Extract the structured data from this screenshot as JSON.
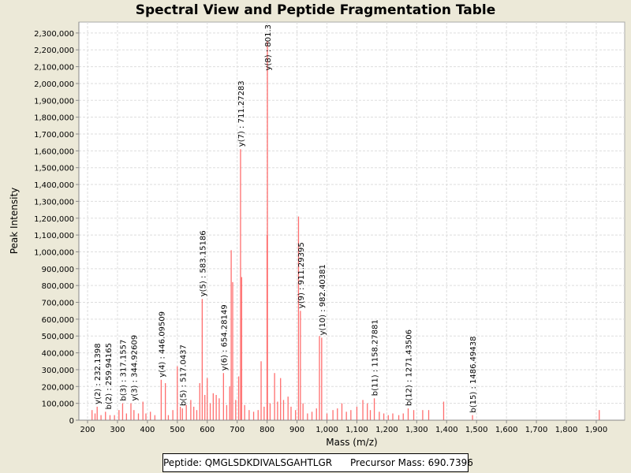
{
  "title": "Spectral View and Peptide Fragmentation Table",
  "footer": {
    "peptide_label": "Peptide: QMGLSDKDIVALSGAHTLGR",
    "precursor_label": "Precursor Mass: 690.7396"
  },
  "chart_data": {
    "type": "bar",
    "title": "Spectral View and Peptide Fragmentation Table",
    "xlabel": "Mass (m/z)",
    "ylabel": "Peak Intensity",
    "xlim": [
      171,
      1995
    ],
    "ylim": [
      0,
      2365000
    ],
    "xticks": [
      200,
      300,
      400,
      500,
      600,
      700,
      800,
      900,
      1000,
      1100,
      1200,
      1300,
      1400,
      1500,
      1600,
      1700,
      1800,
      1900
    ],
    "yticks": [
      0,
      100000,
      200000,
      300000,
      400000,
      500000,
      600000,
      700000,
      800000,
      900000,
      1000000,
      1100000,
      1200000,
      1300000,
      1400000,
      1500000,
      1600000,
      1700000,
      1800000,
      1900000,
      2000000,
      2100000,
      2200000,
      2300000
    ],
    "grid": true,
    "color": "#ff5555",
    "peaks": [
      [
        215,
        60000
      ],
      [
        225,
        40000
      ],
      [
        232.14,
        80000
      ],
      [
        245,
        30000
      ],
      [
        259.94,
        50000
      ],
      [
        275,
        30000
      ],
      [
        290,
        30000
      ],
      [
        305,
        60000
      ],
      [
        317.16,
        100000
      ],
      [
        330,
        40000
      ],
      [
        344.93,
        100000
      ],
      [
        355,
        60000
      ],
      [
        370,
        40000
      ],
      [
        385,
        110000
      ],
      [
        395,
        40000
      ],
      [
        410,
        50000
      ],
      [
        425,
        30000
      ],
      [
        446.1,
        240000
      ],
      [
        460,
        220000
      ],
      [
        470,
        30000
      ],
      [
        485,
        60000
      ],
      [
        500,
        320000
      ],
      [
        510,
        80000
      ],
      [
        517.04,
        70000
      ],
      [
        530,
        90000
      ],
      [
        545,
        120000
      ],
      [
        555,
        80000
      ],
      [
        565,
        60000
      ],
      [
        575,
        220000
      ],
      [
        583.15,
        720000
      ],
      [
        592,
        150000
      ],
      [
        600,
        250000
      ],
      [
        610,
        100000
      ],
      [
        620,
        160000
      ],
      [
        630,
        150000
      ],
      [
        640,
        130000
      ],
      [
        654.28,
        280000
      ],
      [
        665,
        90000
      ],
      [
        675,
        200000
      ],
      [
        680,
        1010000
      ],
      [
        685,
        820000
      ],
      [
        695,
        120000
      ],
      [
        705,
        260000
      ],
      [
        711.27,
        1610000
      ],
      [
        715,
        850000
      ],
      [
        725,
        90000
      ],
      [
        740,
        60000
      ],
      [
        755,
        50000
      ],
      [
        770,
        60000
      ],
      [
        780,
        350000
      ],
      [
        790,
        80000
      ],
      [
        800,
        1100000
      ],
      [
        801,
        2250000
      ],
      [
        810,
        100000
      ],
      [
        825,
        280000
      ],
      [
        835,
        110000
      ],
      [
        845,
        250000
      ],
      [
        855,
        120000
      ],
      [
        870,
        140000
      ],
      [
        880,
        80000
      ],
      [
        895,
        60000
      ],
      [
        905,
        1210000
      ],
      [
        911.29,
        650000
      ],
      [
        920,
        100000
      ],
      [
        935,
        40000
      ],
      [
        950,
        50000
      ],
      [
        965,
        70000
      ],
      [
        975,
        500000
      ],
      [
        982.4,
        490000
      ],
      [
        1000,
        40000
      ],
      [
        1020,
        60000
      ],
      [
        1035,
        70000
      ],
      [
        1050,
        100000
      ],
      [
        1065,
        50000
      ],
      [
        1080,
        60000
      ],
      [
        1100,
        80000
      ],
      [
        1120,
        120000
      ],
      [
        1135,
        100000
      ],
      [
        1145,
        60000
      ],
      [
        1158.28,
        130000
      ],
      [
        1175,
        50000
      ],
      [
        1190,
        40000
      ],
      [
        1205,
        30000
      ],
      [
        1220,
        40000
      ],
      [
        1240,
        30000
      ],
      [
        1255,
        40000
      ],
      [
        1271.44,
        70000
      ],
      [
        1290,
        60000
      ],
      [
        1320,
        60000
      ],
      [
        1340,
        60000
      ],
      [
        1390,
        110000
      ],
      [
        1486.49,
        30000
      ],
      [
        1910,
        60000
      ]
    ],
    "annotations": [
      {
        "mz": 232.14,
        "intensity": 80000,
        "text": "y(2) : 232.1398"
      },
      {
        "mz": 259.94,
        "intensity": 50000,
        "text": "b(2) : 259.94165"
      },
      {
        "mz": 317.16,
        "intensity": 100000,
        "text": "b(3) : 317.1557"
      },
      {
        "mz": 344.93,
        "intensity": 100000,
        "text": "y(3) : 344.92609"
      },
      {
        "mz": 446.1,
        "intensity": 240000,
        "text": "y(4) : 446.09509"
      },
      {
        "mz": 517.04,
        "intensity": 70000,
        "text": "b(5) : 517.0437"
      },
      {
        "mz": 583.15,
        "intensity": 720000,
        "text": "y(5) : 583.15186"
      },
      {
        "mz": 654.28,
        "intensity": 280000,
        "text": "y(6) : 654.28149"
      },
      {
        "mz": 711.27,
        "intensity": 1610000,
        "text": "y(7) : 711.27283"
      },
      {
        "mz": 801,
        "intensity": 2250000,
        "text": "y(8) : 801.3"
      },
      {
        "mz": 911.29,
        "intensity": 650000,
        "text": "y(9) : 911.29395"
      },
      {
        "mz": 982.4,
        "intensity": 490000,
        "text": "y(10) : 982.40381"
      },
      {
        "mz": 1158.28,
        "intensity": 130000,
        "text": "b(11) : 1158.27881"
      },
      {
        "mz": 1271.44,
        "intensity": 70000,
        "text": "b(12) : 1271.43506"
      },
      {
        "mz": 1486.49,
        "intensity": 30000,
        "text": "b(15) : 1486.49438"
      }
    ]
  }
}
